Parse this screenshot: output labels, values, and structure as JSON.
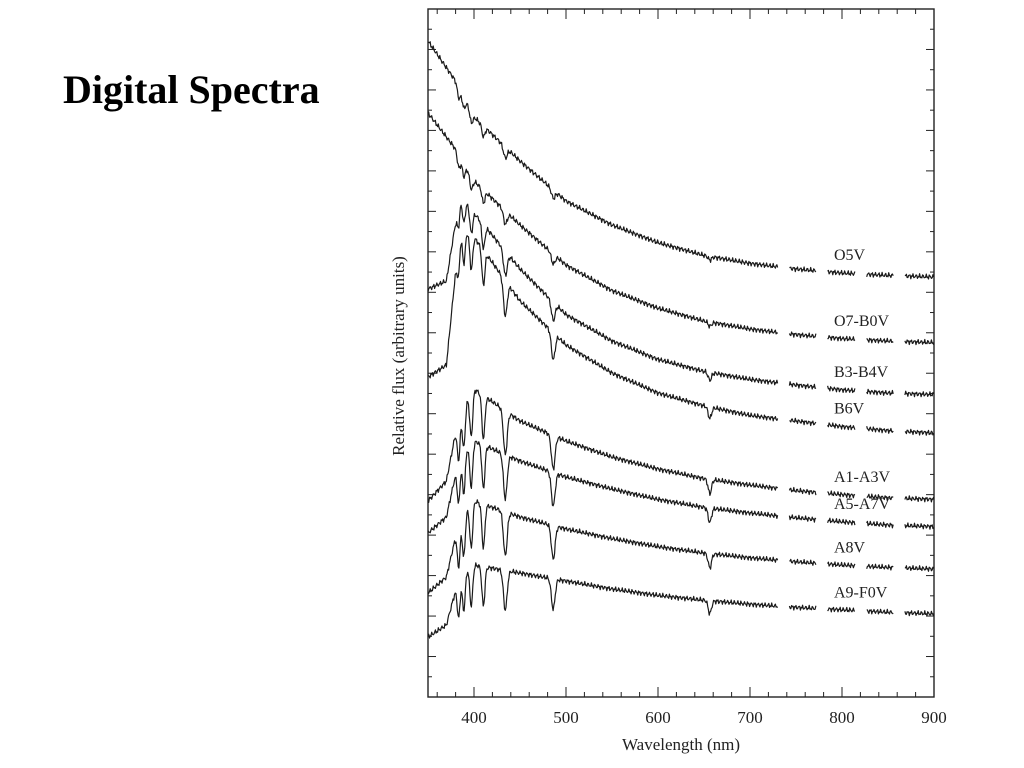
{
  "slide": {
    "title": "Digital Spectra"
  },
  "chart_data": {
    "type": "line",
    "xlabel": "Wavelength (nm)",
    "ylabel": "Relative flux (arbitrary units)",
    "xlim": [
      350,
      900
    ],
    "x_ticks": [
      400,
      500,
      600,
      700,
      800,
      900
    ],
    "y_ticks_shown": false,
    "grid": false,
    "line_color": "#1a1a1a",
    "gap_region": [
      700,
      900
    ],
    "absorption_lines_nm": [
      383.5,
      388.9,
      397.0,
      410.2,
      434.0,
      486.1,
      656.3
    ],
    "series": [
      {
        "name": "O5V",
        "x": [
          350,
          380,
          400,
          450,
          500,
          550,
          600,
          650,
          700,
          750,
          800,
          850,
          900
        ],
        "y": [
          8.2,
          7.7,
          7.25,
          6.7,
          6.2,
          5.9,
          5.68,
          5.52,
          5.42,
          5.35,
          5.3,
          5.27,
          5.25
        ]
      },
      {
        "name": "O7-B0V",
        "x": [
          350,
          380,
          400,
          450,
          500,
          550,
          600,
          650,
          700,
          750,
          800,
          850,
          900
        ],
        "y": [
          7.3,
          6.85,
          6.45,
          5.9,
          5.4,
          5.08,
          4.86,
          4.7,
          4.6,
          4.53,
          4.48,
          4.45,
          4.43
        ]
      },
      {
        "name": "B3-B4V",
        "x": [
          350,
          370,
          385,
          400,
          450,
          500,
          550,
          600,
          650,
          700,
          750,
          800,
          850,
          900
        ],
        "y": [
          5.1,
          5.2,
          6.3,
          6.05,
          5.35,
          4.78,
          4.45,
          4.22,
          4.07,
          3.97,
          3.9,
          3.84,
          3.8,
          3.78
        ]
      },
      {
        "name": "B6V",
        "x": [
          350,
          370,
          385,
          400,
          450,
          500,
          550,
          600,
          650,
          700,
          750,
          800,
          850,
          900
        ],
        "y": [
          4.0,
          4.15,
          5.9,
          5.75,
          4.95,
          4.4,
          4.05,
          3.8,
          3.64,
          3.52,
          3.45,
          3.38,
          3.33,
          3.3
        ]
      },
      {
        "name": "A1-A3V",
        "x": [
          350,
          370,
          385,
          400,
          450,
          500,
          550,
          600,
          650,
          700,
          750,
          800,
          850,
          900
        ],
        "y": [
          2.45,
          2.7,
          3.6,
          3.85,
          3.45,
          3.2,
          3.0,
          2.85,
          2.73,
          2.65,
          2.58,
          2.53,
          2.49,
          2.47
        ]
      },
      {
        "name": "A5-A7V",
        "x": [
          350,
          370,
          385,
          400,
          450,
          500,
          550,
          600,
          650,
          700,
          750,
          800,
          850,
          900
        ],
        "y": [
          2.05,
          2.25,
          3.05,
          3.2,
          2.95,
          2.75,
          2.6,
          2.47,
          2.37,
          2.3,
          2.24,
          2.19,
          2.15,
          2.13
        ]
      },
      {
        "name": "A8V",
        "x": [
          350,
          370,
          385,
          400,
          450,
          500,
          550,
          600,
          650,
          700,
          750,
          800,
          850,
          900
        ],
        "y": [
          1.3,
          1.5,
          2.25,
          2.45,
          2.25,
          2.1,
          1.98,
          1.88,
          1.8,
          1.74,
          1.69,
          1.65,
          1.62,
          1.6
        ]
      },
      {
        "name": "A9-F0V",
        "x": [
          350,
          370,
          385,
          400,
          450,
          500,
          550,
          600,
          650,
          700,
          750,
          800,
          850,
          900
        ],
        "y": [
          0.75,
          0.9,
          1.55,
          1.65,
          1.55,
          1.45,
          1.35,
          1.27,
          1.21,
          1.16,
          1.12,
          1.09,
          1.06,
          1.04
        ]
      }
    ]
  }
}
